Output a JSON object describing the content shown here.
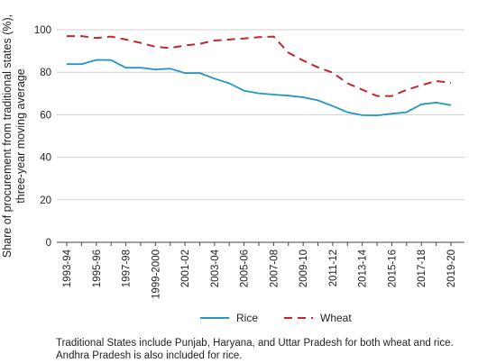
{
  "chart_data": {
    "type": "line",
    "title": "",
    "ylabel": "Share of procurement from traditional states (%), three-year moving average",
    "ylabel_lines": [
      "Share of procurement from traditional states (%),",
      "three-year moving average"
    ],
    "xlabel": "",
    "ylim": [
      0,
      100
    ],
    "yticks": [
      0,
      20,
      40,
      60,
      80,
      100
    ],
    "grid": "horizontal",
    "legend_position": "bottom",
    "x": [
      "1993-94",
      "1994-95",
      "1995-96",
      "1996-97",
      "1997-98",
      "1998-99",
      "1999-2000",
      "2000-01",
      "2001-02",
      "2002-03",
      "2003-04",
      "2004-05",
      "2005-06",
      "2006-07",
      "2007-08",
      "2008-09",
      "2009-10",
      "2010-11",
      "2011-12",
      "2012-13",
      "2013-14",
      "2014-15",
      "2015-16",
      "2016-17",
      "2017-18",
      "2018-19",
      "2019-20"
    ],
    "xtick_labels": [
      "1993-94",
      "1995-96",
      "1997-98",
      "1999-2000",
      "2001-02",
      "2003-04",
      "2005-06",
      "2007-08",
      "2009-10",
      "2011-12",
      "2013-14",
      "2015-16",
      "2017-18",
      "2019-20"
    ],
    "series": [
      {
        "name": "Rice",
        "color": "#2596be",
        "dash": "solid",
        "values": [
          83.8,
          83.8,
          85.8,
          85.7,
          82.1,
          82.1,
          81.3,
          81.7,
          79.6,
          79.6,
          77.0,
          74.8,
          71.3,
          70.1,
          69.5,
          69.0,
          68.2,
          66.8,
          64.1,
          61.2,
          59.8,
          59.7,
          60.5,
          61.2,
          64.9,
          65.7,
          64.5
        ]
      },
      {
        "name": "Wheat",
        "color": "#c0282d",
        "dash": "dashed",
        "values": [
          97.0,
          97.0,
          96.1,
          96.8,
          95.4,
          93.8,
          92.0,
          91.4,
          92.6,
          93.4,
          94.9,
          95.4,
          95.9,
          96.5,
          96.8,
          89.2,
          85.5,
          82.3,
          79.8,
          74.8,
          71.8,
          68.8,
          68.8,
          71.7,
          73.9,
          75.9,
          75.0
        ]
      }
    ]
  },
  "notes": [
    "Traditional States include Punjab, Haryana, and Uttar Pradesh for both wheat and rice.",
    "Andhra Pradesh is also included for rice."
  ]
}
